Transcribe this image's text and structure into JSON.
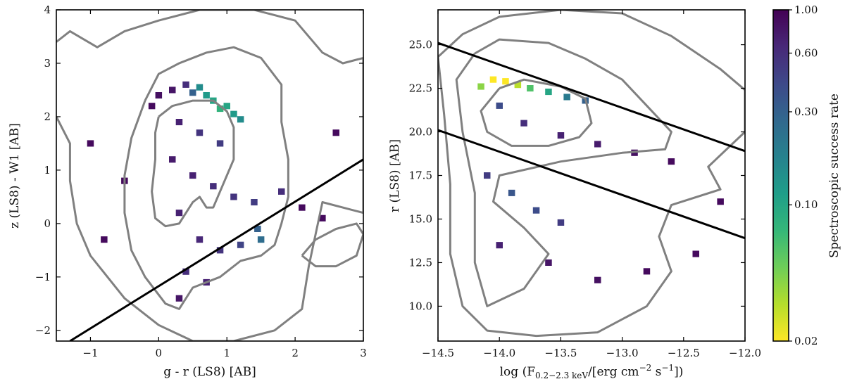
{
  "chart_data": [
    {
      "type": "heatmap",
      "panel": "left",
      "xlabel": "g - r (LS8) [AB]",
      "ylabel": "z (LS8) - W1 [AB]",
      "xlim": [
        -1.5,
        3.0
      ],
      "ylim": [
        -2.2,
        4.0
      ],
      "xticks": [
        -1,
        0,
        1,
        2,
        3
      ],
      "yticks": [
        -2,
        -1,
        0,
        1,
        2,
        3,
        4
      ],
      "x_tick_labels": [
        "−1",
        "0",
        "1",
        "2",
        "3"
      ],
      "y_tick_labels": [
        "−2",
        "−1",
        "0",
        "1",
        "2",
        "3",
        "4"
      ],
      "cells": [
        {
          "x": -0.1,
          "y": 2.2,
          "rate": 0.9
        },
        {
          "x": 0.0,
          "y": 2.4,
          "rate": 0.85
        },
        {
          "x": 0.2,
          "y": 2.5,
          "rate": 0.8
        },
        {
          "x": 0.4,
          "y": 2.6,
          "rate": 0.6
        },
        {
          "x": 0.5,
          "y": 2.45,
          "rate": 0.3
        },
        {
          "x": 0.6,
          "y": 2.55,
          "rate": 0.15
        },
        {
          "x": 0.7,
          "y": 2.4,
          "rate": 0.12
        },
        {
          "x": 0.8,
          "y": 2.3,
          "rate": 0.1
        },
        {
          "x": 0.9,
          "y": 2.15,
          "rate": 0.08
        },
        {
          "x": 1.0,
          "y": 2.2,
          "rate": 0.1
        },
        {
          "x": 1.1,
          "y": 2.05,
          "rate": 0.12
        },
        {
          "x": 1.2,
          "y": 1.95,
          "rate": 0.15
        },
        {
          "x": 0.3,
          "y": 1.9,
          "rate": 0.7
        },
        {
          "x": 0.6,
          "y": 1.7,
          "rate": 0.55
        },
        {
          "x": 0.9,
          "y": 1.5,
          "rate": 0.5
        },
        {
          "x": 0.2,
          "y": 1.2,
          "rate": 0.75
        },
        {
          "x": 0.5,
          "y": 0.9,
          "rate": 0.7
        },
        {
          "x": 0.8,
          "y": 0.7,
          "rate": 0.6
        },
        {
          "x": 1.1,
          "y": 0.5,
          "rate": 0.55
        },
        {
          "x": 1.4,
          "y": 0.4,
          "rate": 0.5
        },
        {
          "x": 0.3,
          "y": 0.2,
          "rate": 0.7
        },
        {
          "x": 0.6,
          "y": -0.3,
          "rate": 0.65
        },
        {
          "x": 0.9,
          "y": -0.5,
          "rate": 0.55
        },
        {
          "x": 1.2,
          "y": -0.4,
          "rate": 0.45
        },
        {
          "x": 1.5,
          "y": -0.3,
          "rate": 0.25
        },
        {
          "x": 1.45,
          "y": -0.1,
          "rate": 0.3
        },
        {
          "x": 0.4,
          "y": -0.9,
          "rate": 0.6
        },
        {
          "x": 0.7,
          "y": -1.1,
          "rate": 0.7
        },
        {
          "x": 0.3,
          "y": -1.4,
          "rate": 0.8
        },
        {
          "x": 1.8,
          "y": 0.6,
          "rate": 0.6
        },
        {
          "x": 2.1,
          "y": 0.3,
          "rate": 0.9
        },
        {
          "x": 2.4,
          "y": 0.1,
          "rate": 0.9
        },
        {
          "x": -0.5,
          "y": 0.8,
          "rate": 0.9
        },
        {
          "x": -0.8,
          "y": -0.3,
          "rate": 0.9
        },
        {
          "x": -1.0,
          "y": 1.5,
          "rate": 0.9
        },
        {
          "x": 2.6,
          "y": 1.7,
          "rate": 0.9
        }
      ],
      "contours": [
        {
          "level": "inner",
          "points": [
            [
              0.0,
              2.0
            ],
            [
              0.2,
              2.2
            ],
            [
              0.5,
              2.3
            ],
            [
              0.8,
              2.3
            ],
            [
              1.0,
              2.1
            ],
            [
              1.1,
              1.8
            ],
            [
              1.1,
              1.2
            ],
            [
              1.0,
              0.9
            ],
            [
              0.9,
              0.6
            ],
            [
              0.8,
              0.3
            ],
            [
              0.7,
              0.3
            ],
            [
              0.6,
              0.5
            ],
            [
              0.5,
              0.4
            ],
            [
              0.4,
              0.2
            ],
            [
              0.3,
              0.0
            ],
            [
              0.1,
              -0.05
            ],
            [
              -0.05,
              0.1
            ],
            [
              -0.1,
              0.6
            ],
            [
              -0.05,
              1.2
            ],
            [
              -0.05,
              1.7
            ],
            [
              0.0,
              2.0
            ]
          ]
        },
        {
          "level": "middle",
          "points": [
            [
              -0.2,
              2.3
            ],
            [
              0.0,
              2.8
            ],
            [
              0.3,
              3.0
            ],
            [
              0.7,
              3.2
            ],
            [
              1.1,
              3.3
            ],
            [
              1.5,
              3.1
            ],
            [
              1.8,
              2.6
            ],
            [
              1.8,
              1.9
            ],
            [
              1.9,
              1.2
            ],
            [
              1.9,
              0.5
            ],
            [
              1.8,
              0.0
            ],
            [
              1.7,
              -0.4
            ],
            [
              1.5,
              -0.6
            ],
            [
              1.2,
              -0.7
            ],
            [
              0.9,
              -1.0
            ],
            [
              0.5,
              -1.2
            ],
            [
              0.3,
              -1.6
            ],
            [
              0.1,
              -1.5
            ],
            [
              -0.2,
              -1.0
            ],
            [
              -0.4,
              -0.5
            ],
            [
              -0.5,
              0.2
            ],
            [
              -0.5,
              0.9
            ],
            [
              -0.4,
              1.6
            ],
            [
              -0.2,
              2.3
            ]
          ]
        },
        {
          "level": "outer",
          "points": [
            [
              -1.5,
              3.4
            ],
            [
              -1.3,
              3.6
            ],
            [
              -0.9,
              3.3
            ],
            [
              -0.5,
              3.6
            ],
            [
              0.0,
              3.8
            ],
            [
              0.6,
              4.0
            ],
            [
              1.4,
              4.0
            ],
            [
              2.0,
              3.8
            ],
            [
              2.4,
              3.2
            ],
            [
              2.7,
              3.0
            ],
            [
              3.0,
              3.1
            ],
            [
              3.0,
              0.2
            ],
            [
              2.4,
              0.4
            ],
            [
              2.2,
              -0.8
            ],
            [
              2.1,
              -1.6
            ],
            [
              1.7,
              -2.0
            ],
            [
              1.1,
              -2.2
            ],
            [
              0.5,
              -2.2
            ],
            [
              0.0,
              -1.9
            ],
            [
              -0.5,
              -1.4
            ],
            [
              -1.0,
              -0.6
            ],
            [
              -1.2,
              0.0
            ],
            [
              -1.3,
              0.8
            ],
            [
              -1.3,
              1.5
            ],
            [
              -1.5,
              2.0
            ]
          ]
        },
        {
          "level": "outer-island",
          "points": [
            [
              2.1,
              -0.6
            ],
            [
              2.3,
              -0.3
            ],
            [
              2.6,
              -0.1
            ],
            [
              2.9,
              0.0
            ],
            [
              3.0,
              -0.2
            ],
            [
              2.9,
              -0.6
            ],
            [
              2.6,
              -0.8
            ],
            [
              2.3,
              -0.8
            ],
            [
              2.1,
              -0.6
            ]
          ]
        }
      ],
      "cut_lines": [
        {
          "points": [
            [
              -1.3,
              -2.2
            ],
            [
              3.0,
              1.2
            ]
          ]
        }
      ]
    },
    {
      "type": "heatmap",
      "panel": "right",
      "xlabel_main": "log (F",
      "xlabel_sub": "0.2−2.3 keV",
      "xlabel_mid": "/[erg cm",
      "xlabel_sup1": "−2",
      "xlabel_mid2": " s",
      "xlabel_sup2": "−1",
      "xlabel_end": "])",
      "ylabel": "r (LS8) [AB]",
      "xlim": [
        -14.5,
        -12.0
      ],
      "ylim": [
        8.0,
        27.0
      ],
      "xticks": [
        -14.5,
        -14.0,
        -13.5,
        -13.0,
        -12.5,
        -12.0
      ],
      "yticks": [
        10.0,
        12.5,
        15.0,
        17.5,
        20.0,
        22.5,
        25.0
      ],
      "x_tick_labels": [
        "−14.5",
        "−14.0",
        "−13.5",
        "−13.0",
        "−12.5",
        "−12.0"
      ],
      "y_tick_labels": [
        "10.0",
        "12.5",
        "15.0",
        "17.5",
        "20.0",
        "22.5",
        "25.0"
      ],
      "cells": [
        {
          "x": -14.05,
          "y": 23.0,
          "rate": 0.02
        },
        {
          "x": -13.95,
          "y": 22.9,
          "rate": 0.02
        },
        {
          "x": -13.85,
          "y": 22.7,
          "rate": 0.03
        },
        {
          "x": -14.15,
          "y": 22.6,
          "rate": 0.04
        },
        {
          "x": -13.75,
          "y": 22.5,
          "rate": 0.06
        },
        {
          "x": -13.6,
          "y": 22.3,
          "rate": 0.1
        },
        {
          "x": -13.45,
          "y": 22.0,
          "rate": 0.2
        },
        {
          "x": -13.3,
          "y": 21.8,
          "rate": 0.3
        },
        {
          "x": -14.0,
          "y": 21.5,
          "rate": 0.4
        },
        {
          "x": -13.8,
          "y": 20.5,
          "rate": 0.6
        },
        {
          "x": -13.5,
          "y": 19.8,
          "rate": 0.7
        },
        {
          "x": -13.2,
          "y": 19.3,
          "rate": 0.75
        },
        {
          "x": -12.9,
          "y": 18.8,
          "rate": 0.85
        },
        {
          "x": -12.6,
          "y": 18.3,
          "rate": 0.9
        },
        {
          "x": -14.1,
          "y": 17.5,
          "rate": 0.5
        },
        {
          "x": -13.9,
          "y": 16.5,
          "rate": 0.35
        },
        {
          "x": -13.7,
          "y": 15.5,
          "rate": 0.4
        },
        {
          "x": -13.5,
          "y": 14.8,
          "rate": 0.5
        },
        {
          "x": -14.0,
          "y": 13.5,
          "rate": 0.7
        },
        {
          "x": -13.6,
          "y": 12.5,
          "rate": 0.8
        },
        {
          "x": -13.2,
          "y": 11.5,
          "rate": 0.85
        },
        {
          "x": -12.8,
          "y": 12.0,
          "rate": 0.9
        },
        {
          "x": -12.4,
          "y": 13.0,
          "rate": 0.9
        },
        {
          "x": -12.2,
          "y": 16.0,
          "rate": 0.9
        }
      ],
      "contours": [
        {
          "level": "inner",
          "points": [
            [
              -14.0,
              22.5
            ],
            [
              -13.8,
              23.0
            ],
            [
              -13.5,
              22.6
            ],
            [
              -13.3,
              21.9
            ],
            [
              -13.25,
              20.5
            ],
            [
              -13.35,
              19.7
            ],
            [
              -13.6,
              19.2
            ],
            [
              -13.9,
              19.2
            ],
            [
              -14.1,
              20.0
            ],
            [
              -14.15,
              21.2
            ],
            [
              -14.0,
              22.5
            ]
          ]
        },
        {
          "level": "middle",
          "points": [
            [
              -14.2,
              24.5
            ],
            [
              -14.0,
              25.3
            ],
            [
              -13.6,
              25.1
            ],
            [
              -13.3,
              24.2
            ],
            [
              -13.0,
              23.0
            ],
            [
              -12.8,
              21.5
            ],
            [
              -12.6,
              20.0
            ],
            [
              -12.65,
              19.0
            ],
            [
              -13.0,
              18.8
            ],
            [
              -13.5,
              18.3
            ],
            [
              -14.0,
              17.5
            ],
            [
              -14.05,
              16.0
            ],
            [
              -13.8,
              14.5
            ],
            [
              -13.6,
              13.0
            ],
            [
              -13.8,
              11.0
            ],
            [
              -14.1,
              10.0
            ],
            [
              -14.2,
              12.5
            ],
            [
              -14.2,
              16.5
            ],
            [
              -14.3,
              20.0
            ],
            [
              -14.35,
              23.0
            ],
            [
              -14.2,
              24.5
            ]
          ]
        },
        {
          "level": "outer",
          "points": [
            [
              -14.5,
              24.3
            ],
            [
              -14.3,
              25.6
            ],
            [
              -14.0,
              26.6
            ],
            [
              -13.5,
              27.0
            ],
            [
              -13.0,
              26.8
            ],
            [
              -12.6,
              25.5
            ],
            [
              -12.2,
              23.6
            ],
            [
              -12.0,
              22.4
            ],
            [
              -12.0,
              20.0
            ],
            [
              -12.3,
              18.0
            ],
            [
              -12.2,
              16.7
            ],
            [
              -12.6,
              15.8
            ],
            [
              -12.7,
              14.0
            ],
            [
              -12.6,
              12.0
            ],
            [
              -12.8,
              10.0
            ],
            [
              -13.2,
              8.5
            ],
            [
              -13.7,
              8.3
            ],
            [
              -14.1,
              8.6
            ],
            [
              -14.3,
              10.0
            ],
            [
              -14.4,
              13.0
            ],
            [
              -14.4,
              17.0
            ],
            [
              -14.45,
              21.0
            ],
            [
              -14.5,
              24.3
            ]
          ]
        }
      ],
      "cut_lines": [
        {
          "points": [
            [
              -14.5,
              25.1
            ],
            [
              -12.0,
              18.9
            ]
          ]
        },
        {
          "points": [
            [
              -14.5,
              20.1
            ],
            [
              -12.0,
              13.9
            ]
          ]
        }
      ]
    },
    {
      "type": "colorbar",
      "label": "Spectroscopic success rate",
      "scale": "log",
      "range": [
        0.02,
        1.0
      ],
      "ticks": [
        0.02,
        0.1,
        0.3,
        0.6,
        1.0
      ],
      "tick_labels": [
        "0.02",
        "0.10",
        "0.30",
        "0.60",
        "1.00"
      ],
      "colormap_low_to_high": [
        "#fde725",
        "#b5de2b",
        "#6ece58",
        "#35b779",
        "#1f9e89",
        "#26828e",
        "#31688e",
        "#3e4989",
        "#482878",
        "#440154"
      ]
    }
  ]
}
